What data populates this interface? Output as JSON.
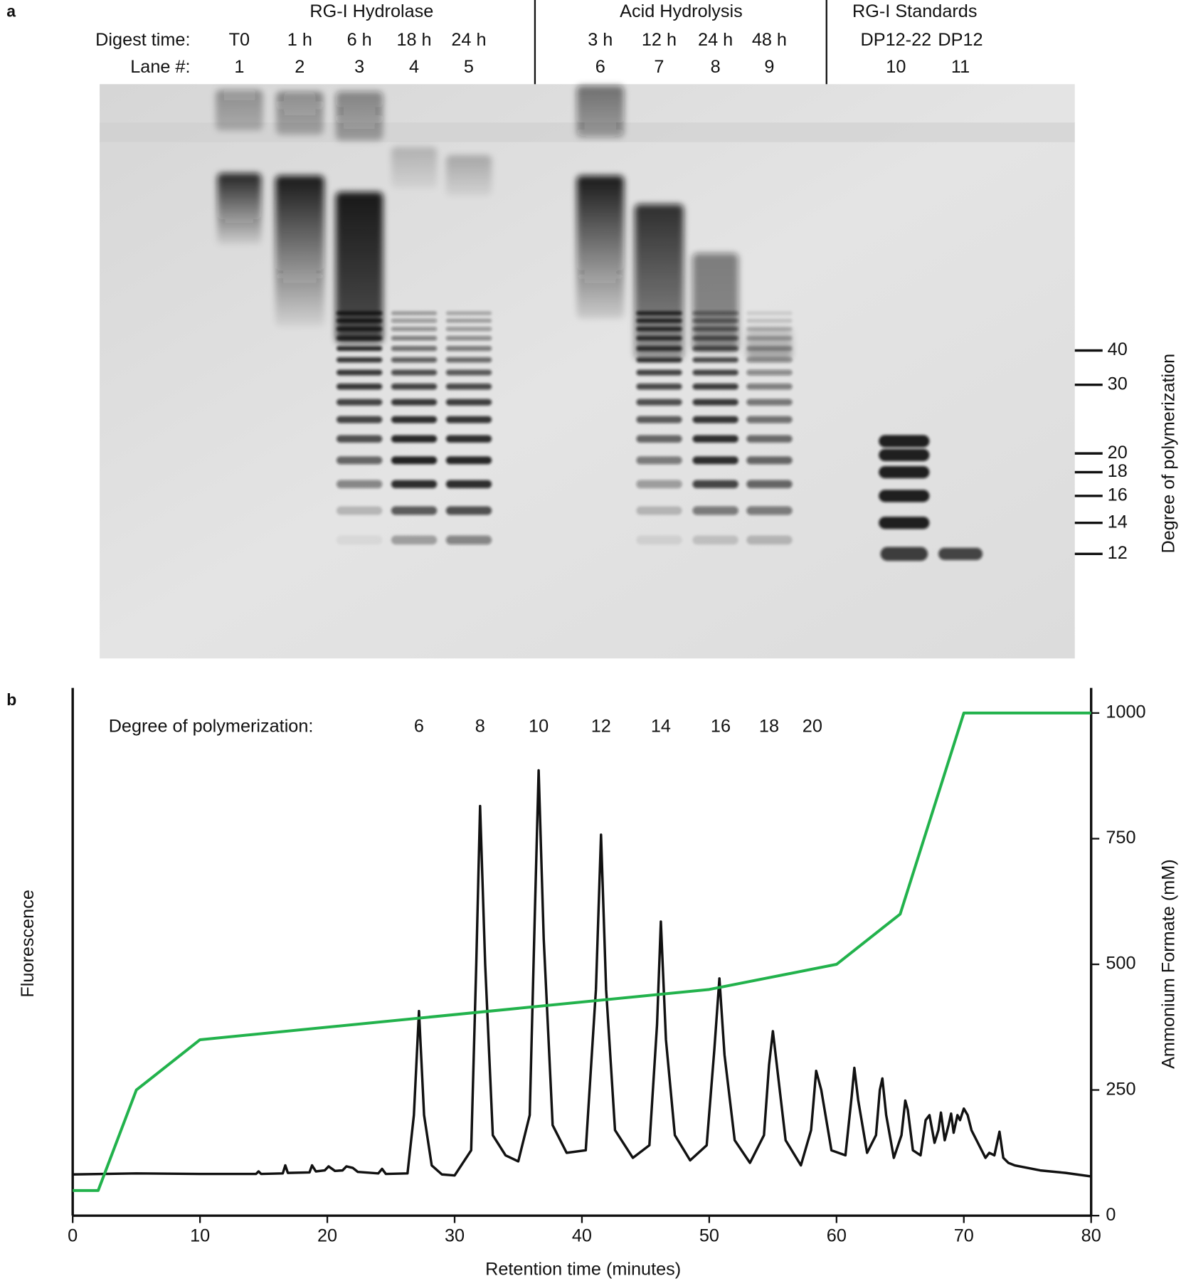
{
  "panel_labels": [
    "a",
    "b"
  ],
  "gel": {
    "groups": [
      "RG-I Hydrolase",
      "Acid Hydrolysis",
      "RG-I Standards"
    ],
    "row_labels": [
      "Digest time:",
      "Lane #:"
    ],
    "digest_times": [
      "T0",
      "1 h",
      "6 h",
      "18 h",
      "24 h",
      "3 h",
      "12 h",
      "24 h",
      "48 h",
      "DP12-22",
      "DP12"
    ],
    "lanes": [
      1,
      2,
      3,
      4,
      5,
      6,
      7,
      8,
      9,
      10,
      11
    ],
    "dp_axis_label": "Degree of polymerization",
    "dp_ticks": [
      40,
      30,
      20,
      18,
      16,
      14,
      12
    ]
  },
  "chart_data": {
    "type": "line",
    "xlabel": "Retention time (minutes)",
    "ylabel": "Fluorescence",
    "y2label": "Ammonium Formate (mM)",
    "annotation_label": "Degree of polymerization:",
    "annotations": [
      6,
      8,
      10,
      12,
      14,
      16,
      18,
      20
    ],
    "xlim": [
      0,
      80
    ],
    "xticks": [
      0,
      10,
      20,
      30,
      40,
      50,
      60,
      70,
      80
    ],
    "ylim": [
      0,
      1050
    ],
    "y2lim": [
      0,
      1050
    ],
    "y2ticks": [
      0,
      250,
      500,
      750,
      1000
    ],
    "series": [
      {
        "color": "#111111",
        "x": [
          0,
          5,
          10,
          14.4,
          14.6,
          14.8,
          16.5,
          16.7,
          16.9,
          18.6,
          18.8,
          19.1,
          19.8,
          20.1,
          20.6,
          21.2,
          21.5,
          22,
          22.4,
          24,
          24.3,
          24.6,
          26.3,
          26.8,
          27.2,
          27.6,
          28.2,
          29,
          30,
          31.3,
          31.7,
          32,
          32.4,
          33,
          34,
          35,
          35.9,
          36.3,
          36.6,
          37,
          37.7,
          38.8,
          40.3,
          41.1,
          41.5,
          41.9,
          42.6,
          44,
          45.3,
          45.9,
          46.2,
          46.6,
          47.3,
          48.5,
          49.8,
          50.4,
          50.8,
          51.2,
          52,
          53.2,
          54.3,
          54.7,
          55,
          55.4,
          56,
          57.2,
          58,
          58.4,
          58.8,
          59.6,
          60.7,
          61.2,
          61.4,
          61.7,
          62.4,
          63.1,
          63.4,
          63.6,
          63.9,
          64.5,
          65.1,
          65.4,
          65.6,
          66,
          66.6,
          67,
          67.3,
          67.7,
          68,
          68.2,
          68.5,
          68.8,
          69,
          69.2,
          69.5,
          69.7,
          70,
          70.3,
          70.6,
          71,
          71.4,
          71.7,
          72,
          72.4,
          72.8,
          73.1,
          73.5,
          74,
          75,
          76,
          78,
          80
        ],
        "values": [
          82,
          84,
          83,
          83,
          88,
          83,
          84,
          100,
          85,
          86,
          100,
          88,
          90,
          98,
          89,
          90,
          98,
          95,
          87,
          84,
          93,
          83,
          84,
          200,
          407,
          200,
          100,
          82,
          80,
          130,
          500,
          815,
          500,
          160,
          120,
          108,
          200,
          600,
          886,
          550,
          180,
          125,
          130,
          450,
          758,
          450,
          170,
          115,
          140,
          380,
          585,
          350,
          160,
          110,
          140,
          330,
          472,
          320,
          150,
          105,
          160,
          300,
          367,
          280,
          150,
          100,
          170,
          288,
          250,
          130,
          120,
          240,
          294,
          230,
          125,
          160,
          250,
          273,
          200,
          115,
          160,
          229,
          210,
          130,
          120,
          190,
          200,
          145,
          170,
          205,
          150,
          180,
          203,
          165,
          200,
          190,
          213,
          200,
          170,
          150,
          130,
          115,
          125,
          120,
          167,
          115,
          105,
          100,
          95,
          90,
          85,
          78
        ]
      },
      {
        "color": "#22b24c",
        "axis": "y2",
        "x": [
          0,
          2,
          5,
          10,
          50,
          60,
          65,
          70,
          80
        ],
        "values": [
          50,
          50,
          250,
          350,
          450,
          500,
          600,
          1000,
          1000
        ]
      }
    ]
  }
}
